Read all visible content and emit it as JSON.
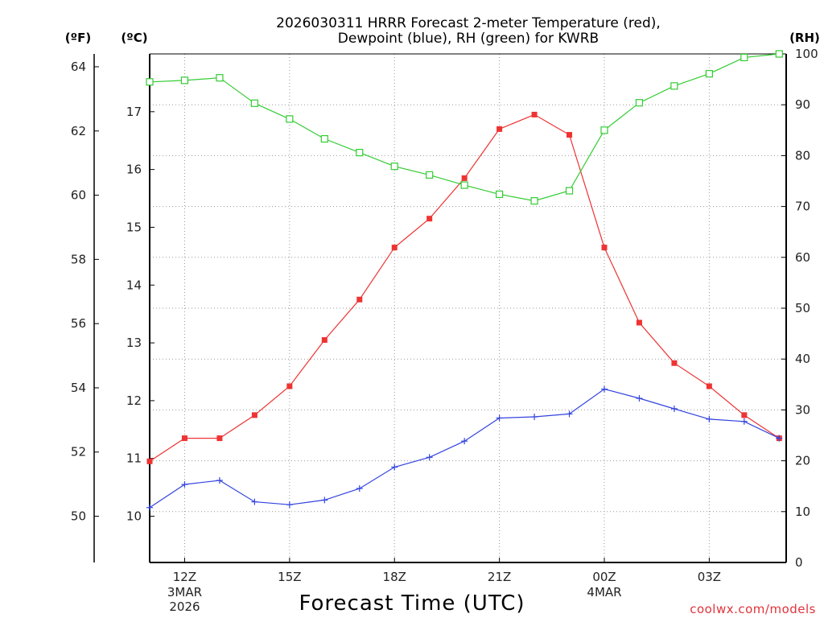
{
  "chart_data": {
    "type": "line",
    "title_line1": "2026030311 HRRR Forecast 2-meter Temperature (red),",
    "title_line2": "Dewpoint (blue), RH (green) for KWRB",
    "xlabel": "Forecast Time (UTC)",
    "credit": "coolwx.com/models",
    "unit_f": "(ºF)",
    "unit_c": "(ºC)",
    "unit_rh": "(RH)",
    "x_hours": [
      11,
      12,
      13,
      14,
      15,
      16,
      17,
      18,
      19,
      20,
      21,
      22,
      23,
      24,
      25,
      26,
      27,
      28,
      29
    ],
    "x_range": [
      11,
      29.2
    ],
    "x_ticks": [
      {
        "hour": 12,
        "label": "12Z",
        "sub1": "3MAR",
        "sub2": "2026"
      },
      {
        "hour": 15,
        "label": "15Z",
        "sub1": "",
        "sub2": ""
      },
      {
        "hour": 18,
        "label": "18Z",
        "sub1": "",
        "sub2": ""
      },
      {
        "hour": 21,
        "label": "21Z",
        "sub1": "",
        "sub2": ""
      },
      {
        "hour": 24,
        "label": "00Z",
        "sub1": "4MAR",
        "sub2": ""
      },
      {
        "hour": 27,
        "label": "03Z",
        "sub1": "",
        "sub2": ""
      }
    ],
    "c_range": [
      9.2,
      18.0
    ],
    "c_ticks": [
      "10",
      "11",
      "12",
      "13",
      "14",
      "15",
      "16",
      "17"
    ],
    "f_ticks": [
      "50",
      "52",
      "54",
      "56",
      "58",
      "60",
      "62",
      "64"
    ],
    "rh_range": [
      0,
      100
    ],
    "rh_ticks": [
      "0",
      "10",
      "20",
      "30",
      "40",
      "50",
      "60",
      "70",
      "80",
      "90",
      "100"
    ],
    "series": [
      {
        "name": "Temperature",
        "unit": "C",
        "color": "#ee3333",
        "values": [
          10.95,
          11.35,
          11.35,
          11.75,
          12.25,
          13.05,
          13.75,
          14.65,
          15.15,
          15.85,
          16.7,
          16.95,
          16.6,
          14.65,
          13.35,
          12.65,
          12.25,
          11.75,
          11.35
        ]
      },
      {
        "name": "Dewpoint",
        "unit": "C",
        "color": "#3344dd",
        "values": [
          10.15,
          10.55,
          10.62,
          10.25,
          10.2,
          10.28,
          10.48,
          10.85,
          11.02,
          11.3,
          11.7,
          11.72,
          11.77,
          12.2,
          12.04,
          11.86,
          11.68,
          11.64,
          11.35
        ]
      },
      {
        "name": "RH",
        "unit": "%",
        "color": "#33cc33",
        "values": [
          94.5,
          94.8,
          95.3,
          90.3,
          87.2,
          83.3,
          80.6,
          77.9,
          76.2,
          74.2,
          72.4,
          71.1,
          73.1,
          85.0,
          90.4,
          93.7,
          96.1,
          99.3,
          100.0
        ]
      }
    ]
  }
}
